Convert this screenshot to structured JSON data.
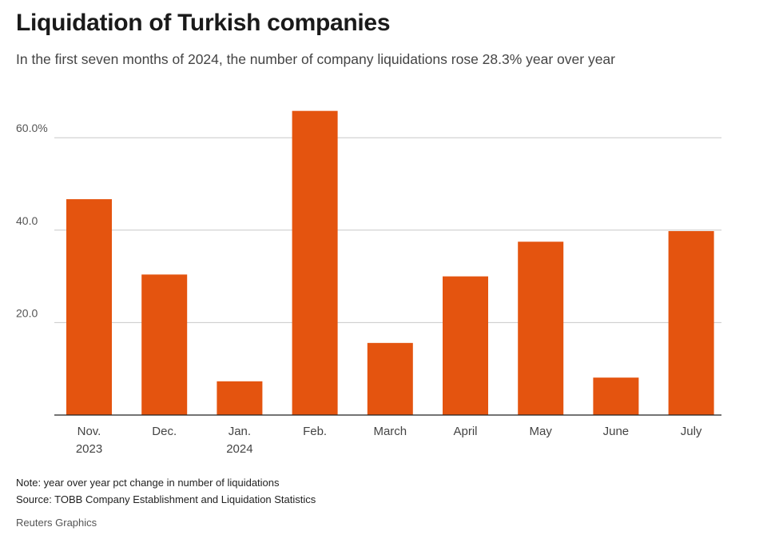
{
  "header": {
    "title": "Liquidation of Turkish companies",
    "subtitle": "In the first seven months of 2024, the number of company liquidations rose 28.3% year over year"
  },
  "chart_data": {
    "type": "bar",
    "categories": [
      [
        "Nov.",
        "2023"
      ],
      [
        "Dec."
      ],
      [
        "Jan.",
        "2024"
      ],
      [
        "Feb."
      ],
      [
        "March"
      ],
      [
        "April"
      ],
      [
        "May"
      ],
      [
        "June"
      ],
      [
        "July"
      ]
    ],
    "values": [
      46.7,
      30.4,
      7.3,
      65.8,
      15.6,
      30.0,
      37.5,
      8.1,
      39.8
    ],
    "yticks": [
      {
        "value": 20,
        "label": "20.0"
      },
      {
        "value": 40,
        "label": "40.0"
      },
      {
        "value": 60,
        "label": "60.0%"
      }
    ],
    "ylim": [
      0,
      70
    ],
    "grid": true,
    "bar_color": "#e4540f",
    "xlabel": "",
    "ylabel": ""
  },
  "footer": {
    "note": "Note: year over year pct change in number of liquidations",
    "source": "Source: TOBB Company Establishment and Liquidation Statistics",
    "credit": "Reuters Graphics"
  }
}
